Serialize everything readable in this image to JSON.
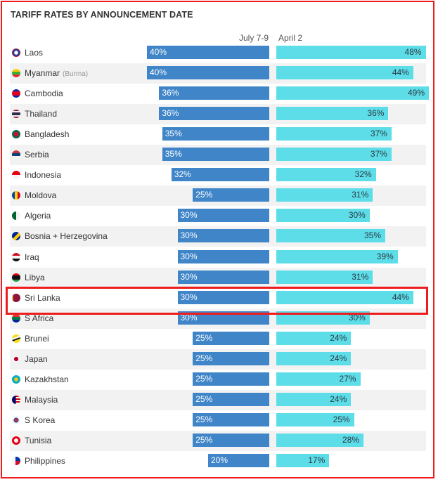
{
  "colors": {
    "july_bar": "#3f85c8",
    "april_bar": "#5ddde8",
    "highlight_border": "#ee1c1c"
  },
  "chart_data": {
    "type": "bar",
    "orientation": "horizontal",
    "title": "TARIFF RATES BY ANNOUNCEMENT DATE",
    "categories": [
      "Laos",
      "Myanmar",
      "Cambodia",
      "Thailand",
      "Bangladesh",
      "Serbia",
      "Indonesia",
      "Moldova",
      "Algeria",
      "Bosnia + Herzegovina",
      "Iraq",
      "Libya",
      "Sri Lanka",
      "S Africa",
      "Brunei",
      "Japan",
      "Kazakhstan",
      "Malaysia",
      "S Korea",
      "Tunisia",
      "Philippines"
    ],
    "category_notes": {
      "Myanmar": "(Burma)"
    },
    "series": [
      {
        "name": "July 7-9",
        "values": [
          40,
          40,
          36,
          36,
          35,
          35,
          32,
          25,
          30,
          30,
          30,
          30,
          30,
          30,
          25,
          25,
          25,
          25,
          25,
          25,
          20
        ]
      },
      {
        "name": "April 2",
        "values": [
          48,
          44,
          49,
          36,
          37,
          37,
          32,
          31,
          30,
          35,
          39,
          31,
          44,
          30,
          24,
          24,
          27,
          24,
          25,
          28,
          17
        ]
      }
    ],
    "value_suffix": "%",
    "highlighted_category": "Sri Lanka",
    "alternating_row_shading": true
  }
}
